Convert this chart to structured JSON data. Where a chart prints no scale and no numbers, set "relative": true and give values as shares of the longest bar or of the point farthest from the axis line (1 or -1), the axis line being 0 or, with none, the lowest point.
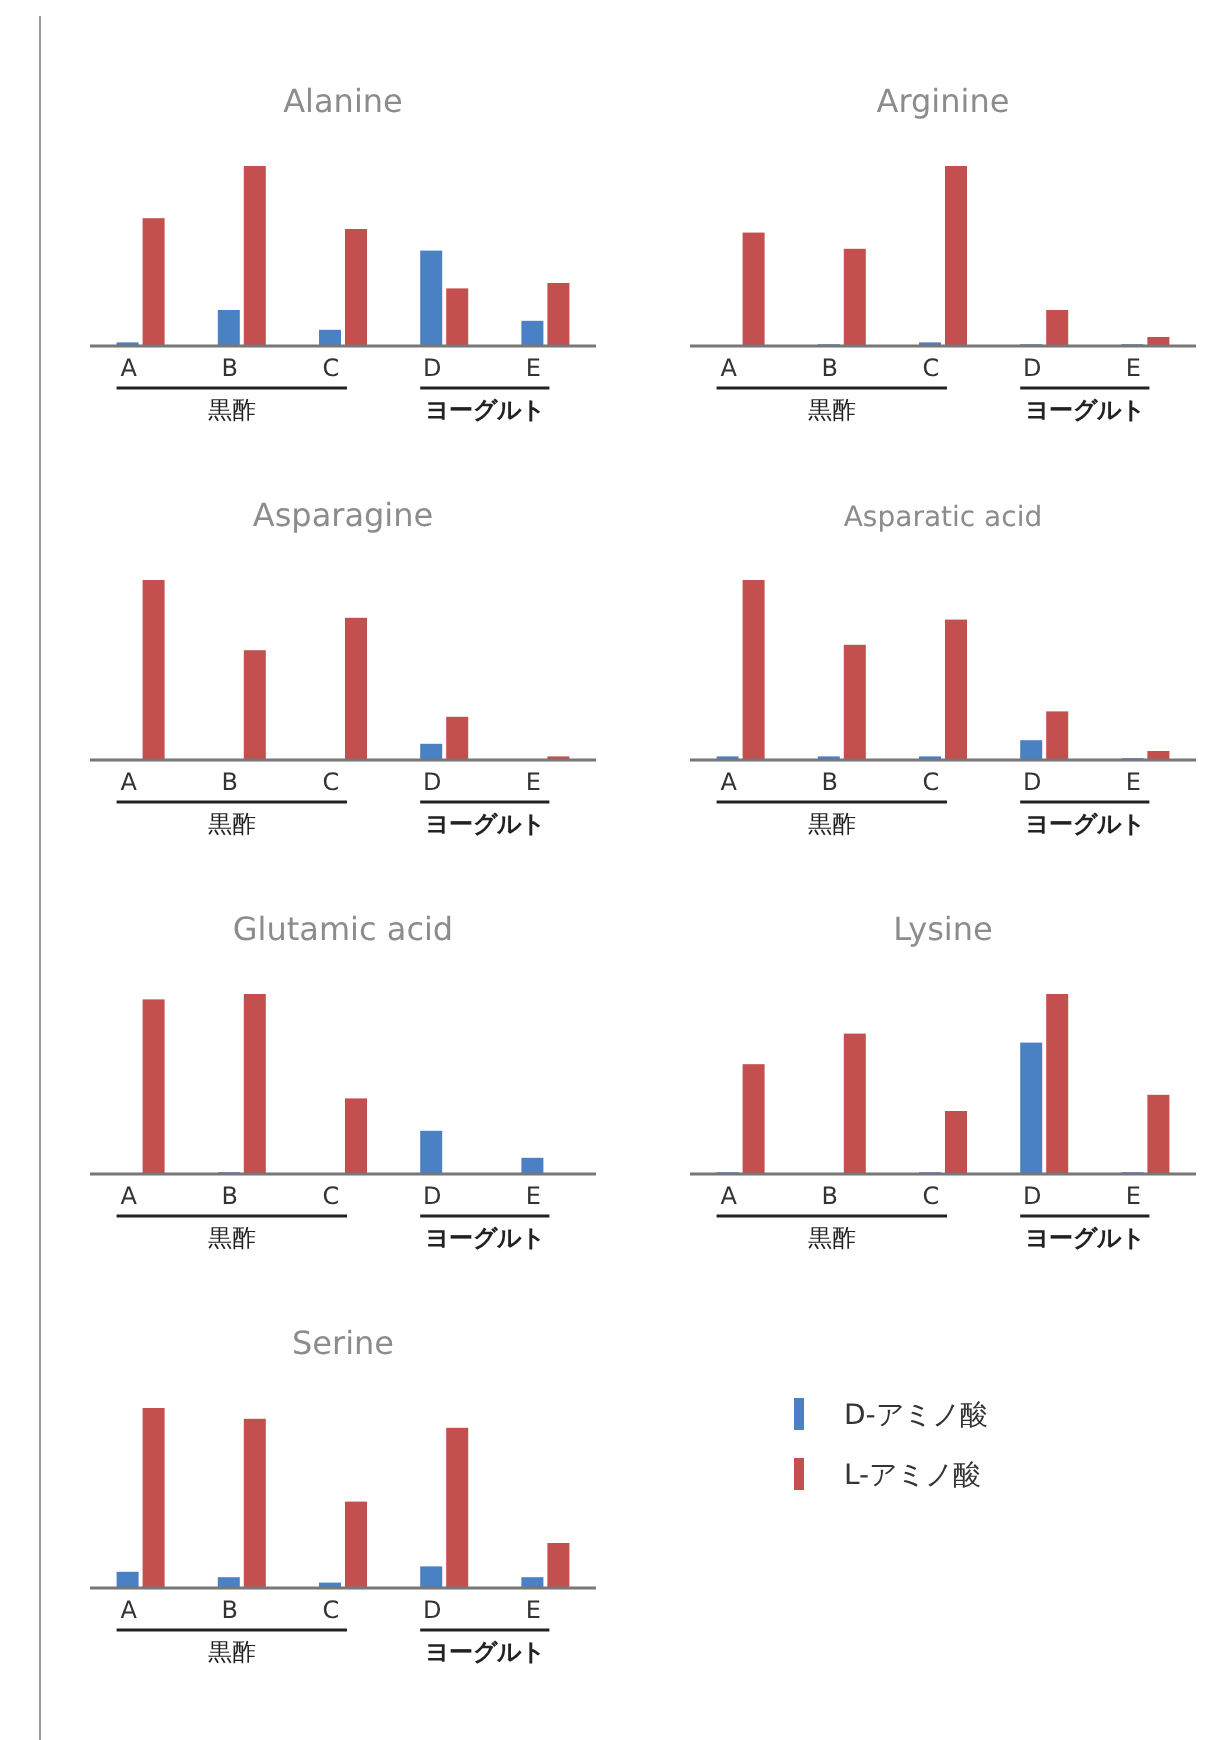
{
  "chart_data": [
    {
      "type": "bar",
      "title": "Alanine",
      "relative": true,
      "categories": [
        "A",
        "B",
        "C",
        "D",
        "E"
      ],
      "annotations": [
        "黒酢",
        "ヨーグルト"
      ],
      "series": [
        {
          "color": "#4a80c4",
          "values": [
            0.02,
            0.2,
            0.09,
            0.53,
            0.14
          ]
        },
        {
          "color": "#c44f4f",
          "values": [
            0.71,
            1,
            0.65,
            0.32,
            0.35
          ]
        }
      ]
    },
    {
      "type": "bar",
      "title": "Arginine",
      "relative": true,
      "categories": [
        "A",
        "B",
        "C",
        "D",
        "E"
      ],
      "annotations": [
        "黒酢",
        "ヨーグルト"
      ],
      "series": [
        {
          "color": "#4a80c4",
          "values": [
            0,
            0.01,
            0.02,
            0.01,
            0.01
          ]
        },
        {
          "color": "#c44f4f",
          "values": [
            0.63,
            0.54,
            1,
            0.2,
            0.05
          ]
        }
      ]
    },
    {
      "type": "bar",
      "title": "Asparagine",
      "relative": true,
      "categories": [
        "A",
        "B",
        "C",
        "D",
        "E"
      ],
      "annotations": [
        "黒酢",
        "ヨーグルト"
      ],
      "series": [
        {
          "color": "#4a80c4",
          "values": [
            0,
            0,
            0,
            0.09,
            0
          ]
        },
        {
          "color": "#c44f4f",
          "values": [
            1,
            0.61,
            0.79,
            0.24,
            0.02
          ]
        }
      ]
    },
    {
      "type": "bar",
      "title": "Asparatic acid",
      "relative": true,
      "categories": [
        "A",
        "B",
        "C",
        "D",
        "E"
      ],
      "annotations": [
        "黒酢",
        "ヨーグルト"
      ],
      "series": [
        {
          "color": "#4a80c4",
          "values": [
            0.02,
            0.02,
            0.02,
            0.11,
            0.01
          ]
        },
        {
          "color": "#c44f4f",
          "values": [
            1,
            0.64,
            0.78,
            0.27,
            0.05
          ]
        }
      ]
    },
    {
      "type": "bar",
      "title": "Glutamic acid",
      "relative": true,
      "categories": [
        "A",
        "B",
        "C",
        "D",
        "E"
      ],
      "annotations": [
        "黒酢",
        "ヨーグルト"
      ],
      "series": [
        {
          "color": "#4a80c4",
          "values": [
            0,
            0.01,
            0,
            0.24,
            0.09
          ]
        },
        {
          "color": "#c44f4f",
          "values": [
            0.97,
            1,
            0.42,
            0,
            0
          ]
        }
      ]
    },
    {
      "type": "bar",
      "title": "Lysine",
      "relative": true,
      "categories": [
        "A",
        "B",
        "C",
        "D",
        "E"
      ],
      "annotations": [
        "黒酢",
        "ヨーグルト"
      ],
      "series": [
        {
          "color": "#4a80c4",
          "values": [
            0.01,
            0,
            0.01,
            0.73,
            0.01
          ]
        },
        {
          "color": "#c44f4f",
          "values": [
            0.61,
            0.78,
            0.35,
            1,
            0.44
          ]
        }
      ]
    },
    {
      "type": "bar",
      "title": "Serine",
      "relative": true,
      "categories": [
        "A",
        "B",
        "C",
        "D",
        "E"
      ],
      "annotations": [
        "黒酢",
        "ヨーグルト"
      ],
      "legend": "right",
      "series": [
        {
          "name": "D-アミノ酸",
          "color": "#4a80c4",
          "values": [
            0.09,
            0.06,
            0.03,
            0.12,
            0.06
          ]
        },
        {
          "name": "L-アミノ酸",
          "color": "#c44f4f",
          "values": [
            1,
            0.94,
            0.48,
            0.89,
            0.25
          ]
        }
      ]
    }
  ]
}
